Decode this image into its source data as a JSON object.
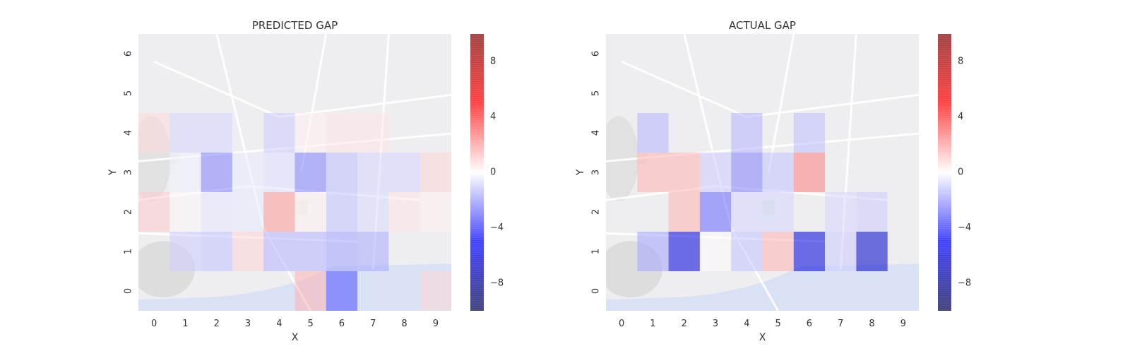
{
  "chart_data": [
    {
      "type": "heatmap",
      "title": "PREDICTED GAP",
      "xlabel": "X",
      "ylabel": "Y",
      "x_ticks": [
        "0",
        "1",
        "2",
        "3",
        "4",
        "5",
        "6",
        "7",
        "8",
        "9"
      ],
      "y_ticks": [
        "0",
        "1",
        "2",
        "3",
        "4",
        "5",
        "6"
      ],
      "background": "street map",
      "grid": false,
      "colormap": "seismic",
      "colorbar_range": [
        -10,
        10
      ],
      "colorbar_ticks": [
        -8,
        -4,
        0,
        4,
        8
      ],
      "colorbar_tick_labels": [
        "−8",
        "−4",
        "0",
        "4",
        "8"
      ],
      "cells": [
        {
          "x": 0,
          "y": 4,
          "v": 0.7
        },
        {
          "x": 1,
          "y": 4,
          "v": -0.8
        },
        {
          "x": 2,
          "y": 4,
          "v": -0.8
        },
        {
          "x": 4,
          "y": 4,
          "v": -1.0
        },
        {
          "x": 5,
          "y": 4,
          "v": 0.3
        },
        {
          "x": 6,
          "y": 4,
          "v": 0.5
        },
        {
          "x": 7,
          "y": 4,
          "v": 0.5
        },
        {
          "x": 1,
          "y": 3,
          "v": -0.3
        },
        {
          "x": 2,
          "y": 3,
          "v": -2.5
        },
        {
          "x": 3,
          "y": 3,
          "v": -0.4
        },
        {
          "x": 4,
          "y": 3,
          "v": -0.6
        },
        {
          "x": 5,
          "y": 3,
          "v": -2.5
        },
        {
          "x": 6,
          "y": 3,
          "v": -1.3
        },
        {
          "x": 7,
          "y": 3,
          "v": -0.8
        },
        {
          "x": 8,
          "y": 3,
          "v": -0.8
        },
        {
          "x": 9,
          "y": 3,
          "v": 0.8
        },
        {
          "x": 0,
          "y": 2,
          "v": 1.0
        },
        {
          "x": 1,
          "y": 2,
          "v": 0.2
        },
        {
          "x": 2,
          "y": 2,
          "v": -0.5
        },
        {
          "x": 3,
          "y": 2,
          "v": -0.4
        },
        {
          "x": 4,
          "y": 2,
          "v": 2.0
        },
        {
          "x": 5,
          "y": 2,
          "v": 0.3
        },
        {
          "x": 6,
          "y": 2,
          "v": -1.2
        },
        {
          "x": 7,
          "y": 2,
          "v": -0.7
        },
        {
          "x": 8,
          "y": 2,
          "v": 0.5
        },
        {
          "x": 9,
          "y": 2,
          "v": 0.3
        },
        {
          "x": 1,
          "y": 1,
          "v": -1.0
        },
        {
          "x": 2,
          "y": 1,
          "v": -1.2
        },
        {
          "x": 3,
          "y": 1,
          "v": 0.8
        },
        {
          "x": 4,
          "y": 1,
          "v": -1.5
        },
        {
          "x": 5,
          "y": 1,
          "v": -1.5
        },
        {
          "x": 6,
          "y": 1,
          "v": -1.8
        },
        {
          "x": 7,
          "y": 1,
          "v": -1.7
        },
        {
          "x": 5,
          "y": 0,
          "v": 1.5
        },
        {
          "x": 6,
          "y": 0,
          "v": -3.5
        },
        {
          "x": 9,
          "y": 0,
          "v": 0.8
        }
      ]
    },
    {
      "type": "heatmap",
      "title": "ACTUAL GAP",
      "xlabel": "X",
      "ylabel": "Y",
      "x_ticks": [
        "0",
        "1",
        "2",
        "3",
        "4",
        "5",
        "6",
        "7",
        "8",
        "9"
      ],
      "y_ticks": [
        "0",
        "1",
        "2",
        "3",
        "4",
        "5",
        "6"
      ],
      "background": "street map",
      "grid": false,
      "colormap": "seismic",
      "colorbar_range": [
        -10,
        10
      ],
      "colorbar_ticks": [
        -8,
        -4,
        0,
        4,
        8
      ],
      "colorbar_tick_labels": [
        "−8",
        "−4",
        "0",
        "4",
        "8"
      ],
      "cells": [
        {
          "x": 1,
          "y": 4,
          "v": -1.5
        },
        {
          "x": 4,
          "y": 4,
          "v": -1.5
        },
        {
          "x": 6,
          "y": 4,
          "v": -1.3
        },
        {
          "x": 1,
          "y": 3,
          "v": 1.5
        },
        {
          "x": 2,
          "y": 3,
          "v": 1.5
        },
        {
          "x": 3,
          "y": 3,
          "v": -1.0
        },
        {
          "x": 4,
          "y": 3,
          "v": -2.5
        },
        {
          "x": 5,
          "y": 3,
          "v": -1.2
        },
        {
          "x": 6,
          "y": 3,
          "v": 2.5
        },
        {
          "x": 2,
          "y": 2,
          "v": 1.5
        },
        {
          "x": 3,
          "y": 2,
          "v": -3.0
        },
        {
          "x": 4,
          "y": 2,
          "v": -0.8
        },
        {
          "x": 5,
          "y": 2,
          "v": -0.8
        },
        {
          "x": 7,
          "y": 2,
          "v": -0.8
        },
        {
          "x": 8,
          "y": 2,
          "v": -1.0
        },
        {
          "x": 1,
          "y": 1,
          "v": -1.8
        },
        {
          "x": 2,
          "y": 1,
          "v": -6.0
        },
        {
          "x": 3,
          "y": 1,
          "v": 0.1
        },
        {
          "x": 4,
          "y": 1,
          "v": -1.2
        },
        {
          "x": 5,
          "y": 1,
          "v": 1.5
        },
        {
          "x": 6,
          "y": 1,
          "v": -6.0
        },
        {
          "x": 7,
          "y": 1,
          "v": -1.0
        },
        {
          "x": 8,
          "y": 1,
          "v": -6.5
        }
      ]
    }
  ]
}
